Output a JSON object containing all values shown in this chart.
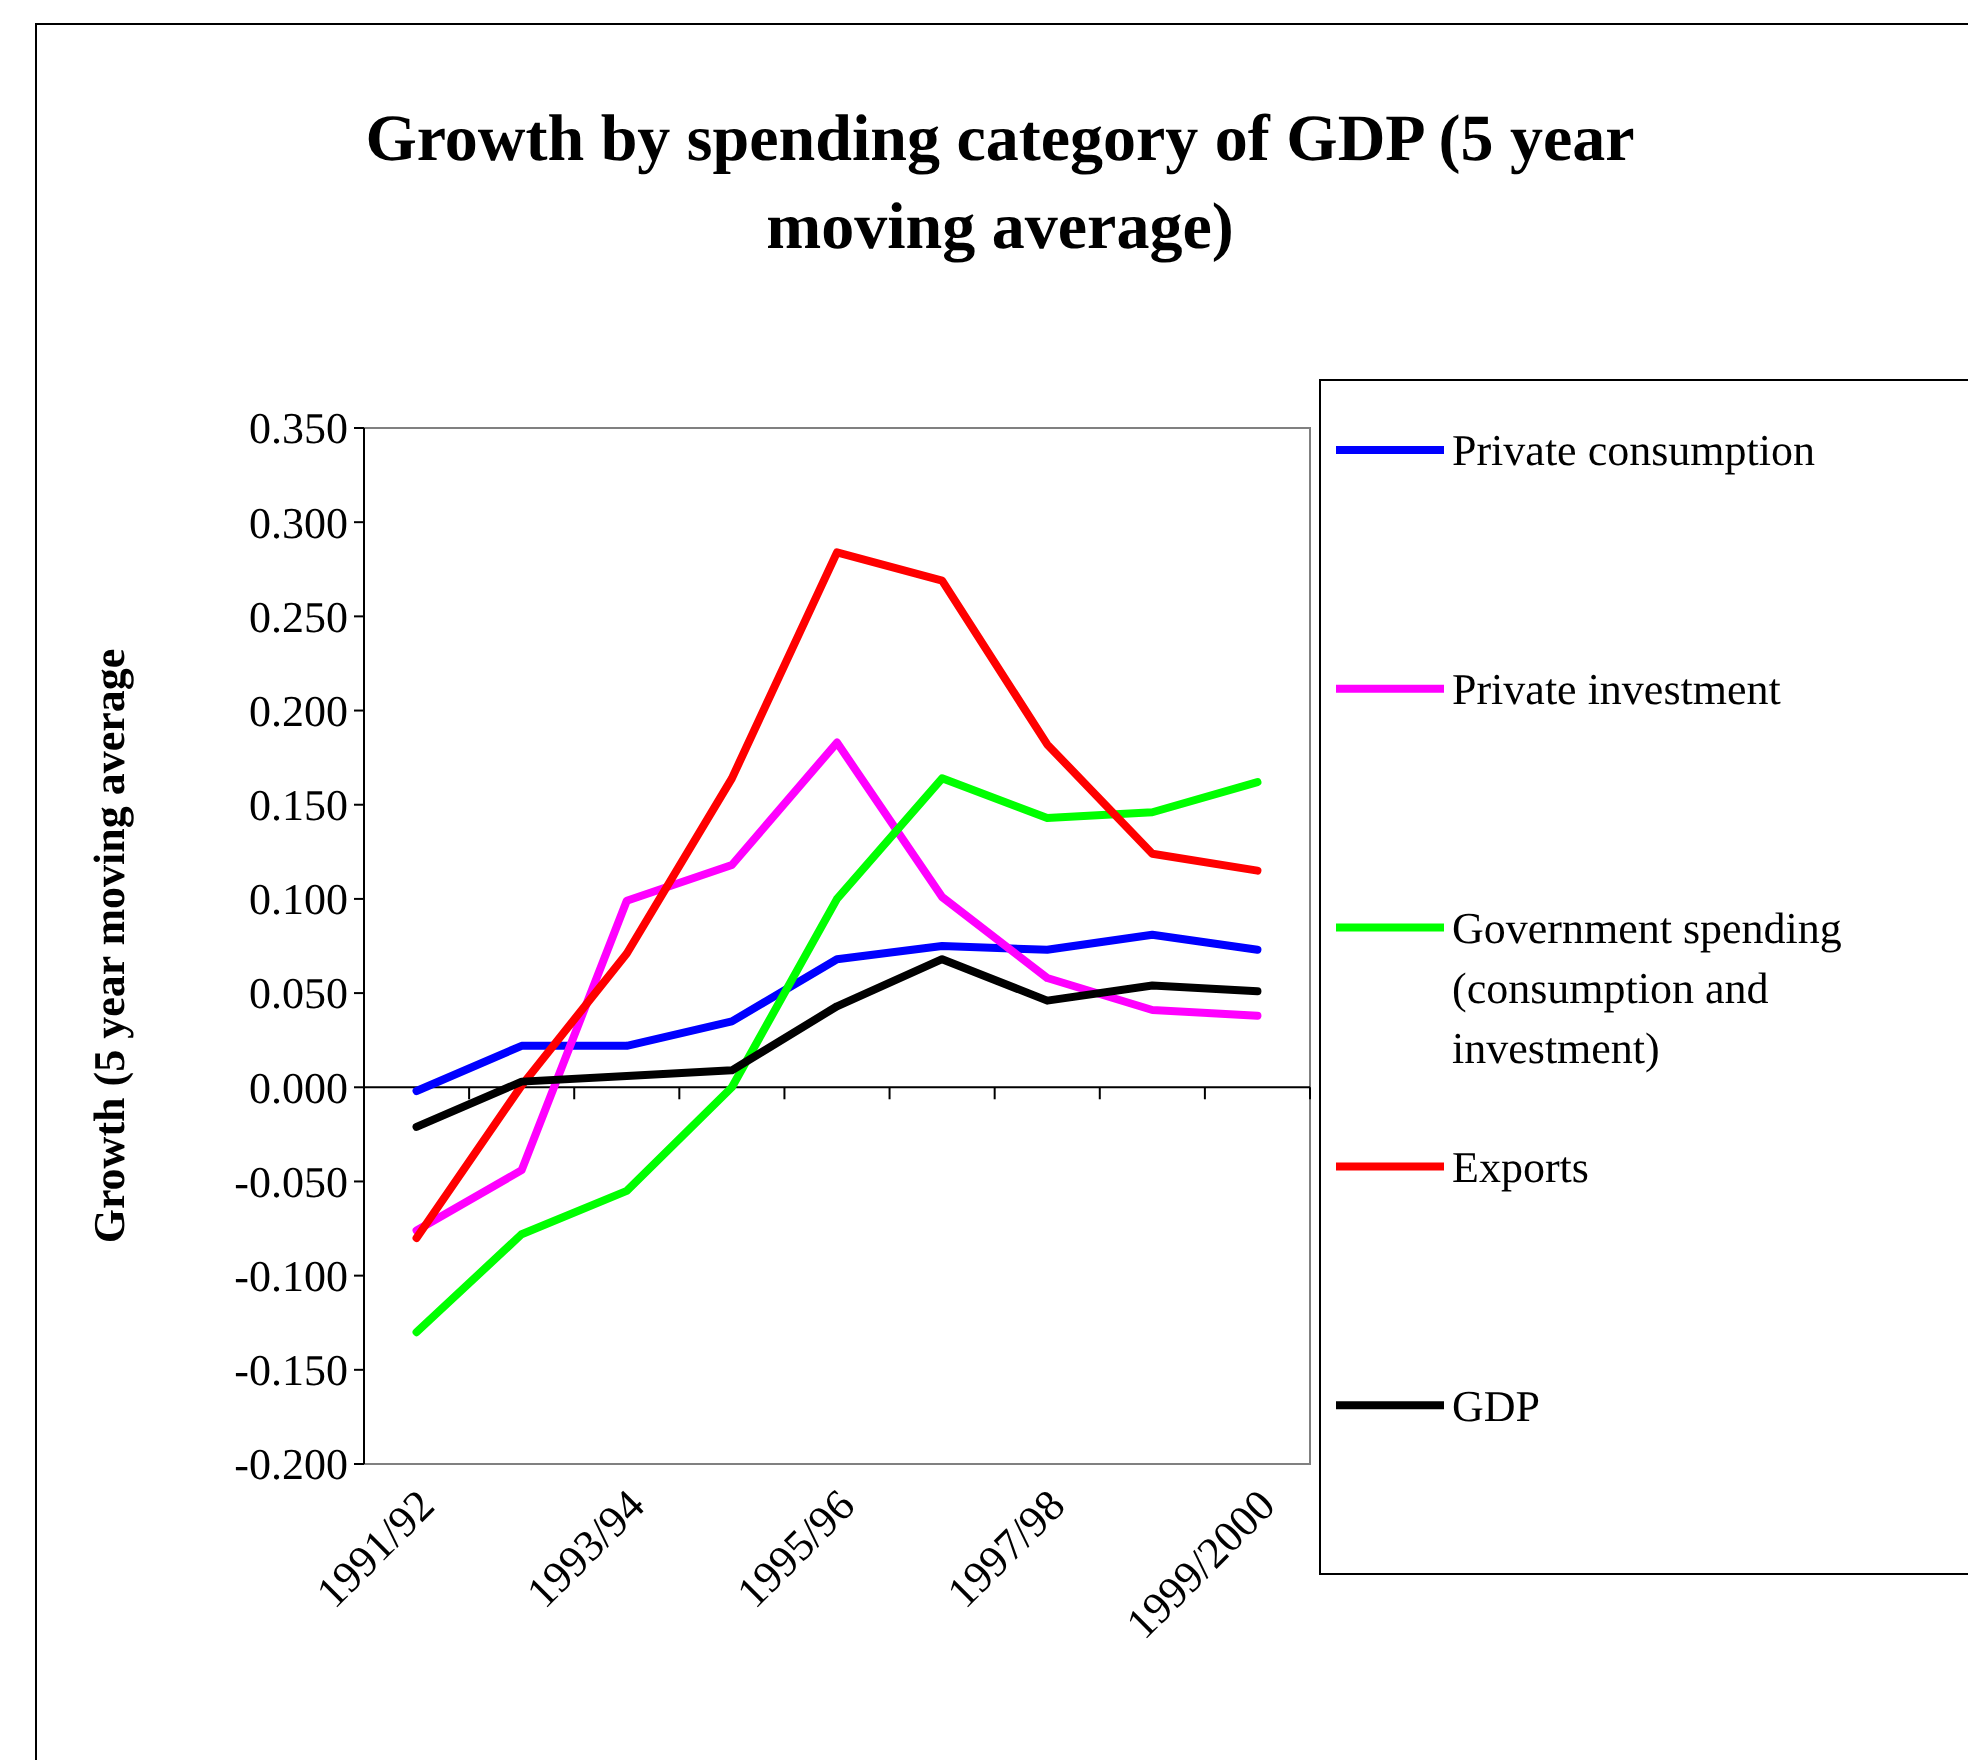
{
  "chart_data": {
    "type": "line",
    "title": "Growth by spending category of GDP (5 year moving average)",
    "ylabel": "Growth (5 year moving average",
    "categories": [
      "1991/92",
      null,
      "1993/94",
      null,
      "1995/96",
      null,
      "1997/98",
      null,
      "1999/2000"
    ],
    "series": [
      {
        "name": "Private consumption",
        "color": "#0000ff",
        "values": [
          -0.002,
          0.022,
          0.022,
          0.035,
          0.068,
          0.075,
          0.073,
          0.081,
          0.073
        ]
      },
      {
        "name": "Private investment",
        "color": "#ff00ff",
        "values": [
          -0.076,
          -0.044,
          0.099,
          0.118,
          0.183,
          0.101,
          0.058,
          0.041,
          0.038
        ]
      },
      {
        "name": "Government spending (consumption and investment)",
        "color": "#00ff00",
        "values": [
          -0.13,
          -0.078,
          -0.055,
          0.0,
          0.1,
          0.164,
          0.143,
          0.146,
          0.162
        ]
      },
      {
        "name": "Exports",
        "color": "#ff0000",
        "values": [
          -0.08,
          0.001,
          0.071,
          0.164,
          0.284,
          0.269,
          0.182,
          0.124,
          0.115
        ]
      },
      {
        "name": "GDP",
        "color": "#000000",
        "values": [
          -0.021,
          0.003,
          0.006,
          0.009,
          0.043,
          0.068,
          0.046,
          0.054,
          0.051
        ]
      }
    ],
    "ylim": [
      -0.2,
      0.35
    ],
    "yticks": [
      {
        "value": -0.2,
        "label": "-0.200"
      },
      {
        "value": -0.15,
        "label": "-0.150"
      },
      {
        "value": -0.1,
        "label": "-0.100"
      },
      {
        "value": -0.05,
        "label": "-0.050"
      },
      {
        "value": 0,
        "label": "0.000"
      },
      {
        "value": 0.05,
        "label": "0.050"
      },
      {
        "value": 0.1,
        "label": "0.100"
      },
      {
        "value": 0.15,
        "label": "0.150"
      },
      {
        "value": 0.2,
        "label": "0.200"
      },
      {
        "value": 0.25,
        "label": "0.250"
      },
      {
        "value": 0.3,
        "label": "0.300"
      },
      {
        "value": 0.35,
        "label": "0.350"
      }
    ],
    "legend": "right",
    "marker": "none",
    "line_style": "solid"
  }
}
